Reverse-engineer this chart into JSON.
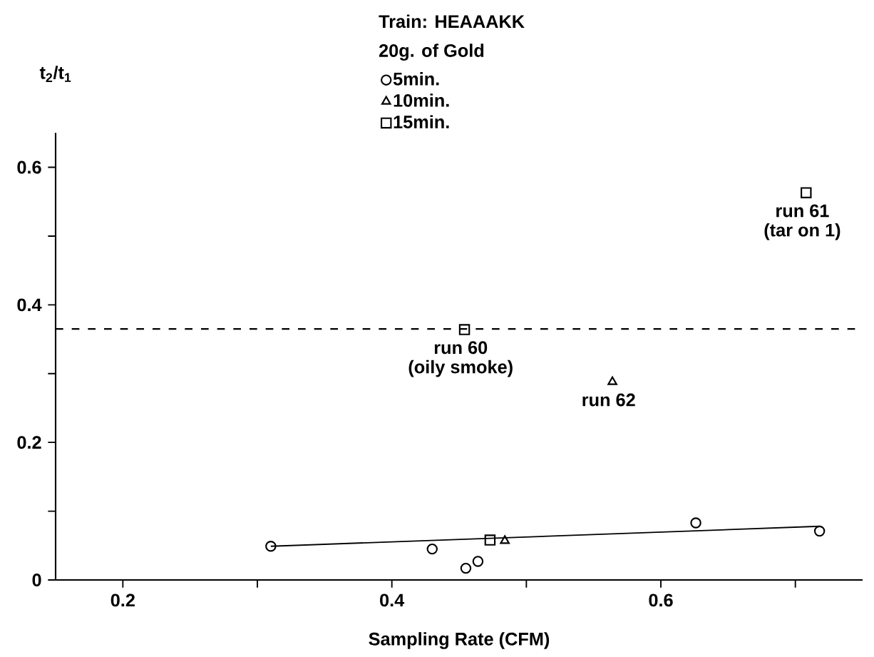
{
  "chart_data": {
    "type": "scatter",
    "title": "Train: HEAAAKK",
    "legend_title": "20g. of Gold",
    "xlabel": "Sampling Rate (CFM)",
    "ylabel": "t$_{2}$/t$_{1}$",
    "xlim": [
      0.15,
      0.75
    ],
    "ylim": [
      0,
      0.65
    ],
    "xticks": [
      0.2,
      {
        "value": 0.3,
        "label": null
      },
      0.4,
      {
        "value": 0.5,
        "label": null
      },
      0.6,
      {
        "value": 0.7,
        "label": null
      }
    ],
    "yticks": [
      0,
      {
        "value": 0.1,
        "label": null
      },
      0.2,
      {
        "value": 0.3,
        "label": null
      },
      0.4,
      {
        "value": 0.5,
        "label": null
      },
      0.6
    ],
    "legend": "top",
    "series": [
      {
        "name": "5min.",
        "color": "#000000",
        "marker": "circle",
        "x": [
          0.31,
          0.43,
          0.455,
          0.464,
          0.626,
          0.718
        ],
        "values": [
          0.049,
          0.045,
          0.017,
          0.027,
          0.083,
          0.071
        ]
      },
      {
        "name": "10min.",
        "color": "#000000",
        "marker": "triangle",
        "x": [
          0.484,
          0.564
        ],
        "values": [
          0.057,
          0.288
        ]
      },
      {
        "name": "15min.",
        "color": "#000000",
        "marker": "square",
        "x": [
          0.473,
          0.454,
          0.708
        ],
        "values": [
          0.058,
          0.364,
          0.563
        ]
      },
      {
        "type": "line",
        "color": "#000000",
        "marker": "none",
        "line_style": "solid",
        "x": [
          0.31,
          0.718
        ],
        "values": [
          0.049,
          0.078
        ]
      }
    ],
    "ref_lines": [
      {
        "axis": "y",
        "value": 0.365,
        "line_style": "dashed",
        "color": "#000000"
      }
    ],
    "annotations": [
      {
        "text": "run 60",
        "x": 0.454,
        "y": 0.364
      },
      "(oily smoke)",
      {
        "text": "run 61",
        "x": 0.708,
        "y": 0.563
      },
      "(tar on 1)",
      {
        "text": "run 62",
        "x": 0.564,
        "y": 0.288
      }
    ]
  }
}
